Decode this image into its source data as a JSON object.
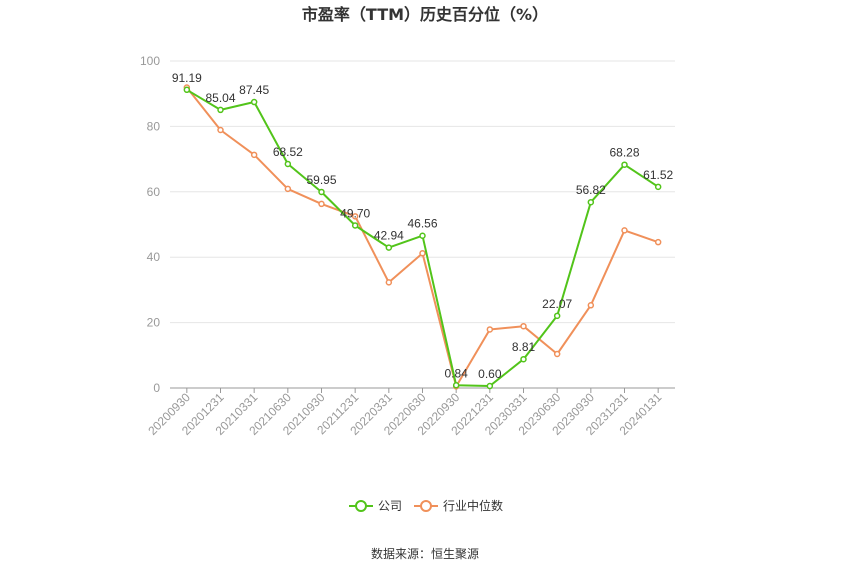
{
  "chart_data": {
    "type": "line",
    "title": "市盈率（TTM）历史百分位（%）",
    "x": [
      "20200930",
      "20201231",
      "20210331",
      "20210630",
      "20210930",
      "20211231",
      "20220331",
      "20220630",
      "20220930",
      "20221231",
      "20230331",
      "20230630",
      "20230930",
      "20231231",
      "20240131"
    ],
    "ylim": [
      0,
      100
    ],
    "yticks": [
      0,
      20,
      40,
      60,
      80,
      100
    ],
    "grid": true,
    "legend_position": "bottom",
    "series": [
      {
        "name": "公司",
        "color": "#52c41a",
        "labeled": true,
        "values": [
          91.19,
          85.04,
          87.45,
          68.52,
          59.95,
          49.7,
          42.94,
          46.56,
          0.84,
          0.6,
          8.81,
          22.07,
          56.82,
          68.28,
          61.52
        ]
      },
      {
        "name": "行业中位数",
        "color": "#f0905a",
        "labeled": false,
        "values": [
          91.9,
          78.9,
          71.3,
          60.9,
          56.3,
          52.5,
          32.3,
          41.2,
          0.5,
          17.9,
          18.9,
          10.4,
          25.3,
          48.2,
          44.6
        ]
      }
    ]
  },
  "source_text": "数据来源：恒生聚源"
}
